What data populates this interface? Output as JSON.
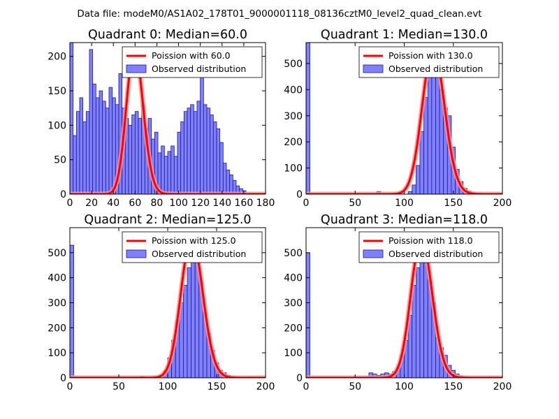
{
  "figure_title": "Data file: modeM0/AS1A02_178T01_9000001118_08136cztM0_level2_quad_clean.evt",
  "colors": {
    "bar_fill": "#8080ff",
    "bar_edge": "#1a1a8c",
    "curve": "#ff0000",
    "curve_halo": "#ff9999"
  },
  "chart_data": [
    {
      "type": "bar",
      "title": "Quadrant 0: Median=60.0",
      "xlim": [
        0,
        180
      ],
      "ylim": [
        0,
        220
      ],
      "xticks": [
        0,
        20,
        40,
        60,
        80,
        100,
        120,
        140,
        160,
        180
      ],
      "yticks": [
        0,
        50,
        100,
        150,
        200
      ],
      "legend": [
        "Poission with 60.0",
        "Observed distribution"
      ],
      "bin_width": 3,
      "bins": [
        [
          0,
          220
        ],
        [
          3,
          85
        ],
        [
          6,
          120
        ],
        [
          9,
          140
        ],
        [
          12,
          105
        ],
        [
          15,
          120
        ],
        [
          18,
          210
        ],
        [
          21,
          160
        ],
        [
          24,
          140
        ],
        [
          27,
          150
        ],
        [
          30,
          135
        ],
        [
          33,
          125
        ],
        [
          36,
          155
        ],
        [
          39,
          140
        ],
        [
          42,
          130
        ],
        [
          45,
          175
        ],
        [
          48,
          125
        ],
        [
          51,
          110
        ],
        [
          54,
          100
        ],
        [
          57,
          115
        ],
        [
          60,
          120
        ],
        [
          63,
          110
        ],
        [
          66,
          130
        ],
        [
          69,
          95
        ],
        [
          72,
          110
        ],
        [
          75,
          80
        ],
        [
          78,
          90
        ],
        [
          81,
          60
        ],
        [
          84,
          70
        ],
        [
          87,
          55
        ],
        [
          90,
          62
        ],
        [
          93,
          70
        ],
        [
          96,
          55
        ],
        [
          99,
          90
        ],
        [
          102,
          105
        ],
        [
          105,
          120
        ],
        [
          108,
          125
        ],
        [
          111,
          130
        ],
        [
          114,
          120
        ],
        [
          117,
          135
        ],
        [
          120,
          180
        ],
        [
          123,
          130
        ],
        [
          126,
          125
        ],
        [
          129,
          115
        ],
        [
          132,
          105
        ],
        [
          135,
          95
        ],
        [
          138,
          75
        ],
        [
          141,
          45
        ],
        [
          144,
          35
        ],
        [
          147,
          28
        ],
        [
          150,
          20
        ],
        [
          153,
          12
        ],
        [
          156,
          8
        ],
        [
          159,
          5
        ]
      ],
      "poisson": {
        "mean": 60,
        "peak": 210
      }
    },
    {
      "type": "bar",
      "title": "Quadrant 1: Median=130.0",
      "xlim": [
        0,
        200
      ],
      "ylim": [
        0,
        580
      ],
      "xticks": [
        0,
        50,
        100,
        150,
        200
      ],
      "yticks": [
        0,
        100,
        200,
        300,
        400,
        500
      ],
      "legend": [
        "Poission with 130.0",
        "Observed distribution"
      ],
      "bin_width": 4,
      "bins": [
        [
          0,
          580
        ],
        [
          72,
          10
        ],
        [
          104,
          10
        ],
        [
          108,
          35
        ],
        [
          112,
          110
        ],
        [
          116,
          240
        ],
        [
          120,
          370
        ],
        [
          124,
          470
        ],
        [
          128,
          520
        ],
        [
          132,
          490
        ],
        [
          136,
          400
        ],
        [
          140,
          330
        ],
        [
          144,
          300
        ],
        [
          148,
          180
        ],
        [
          152,
          95
        ],
        [
          156,
          48
        ],
        [
          160,
          22
        ],
        [
          164,
          12
        ],
        [
          168,
          6
        ],
        [
          172,
          3
        ]
      ],
      "poisson": {
        "mean": 130,
        "peak": 555
      }
    },
    {
      "type": "bar",
      "title": "Quadrant 2: Median=125.0",
      "xlim": [
        0,
        200
      ],
      "ylim": [
        0,
        600
      ],
      "xticks": [
        0,
        50,
        100,
        150,
        200
      ],
      "yticks": [
        0,
        100,
        200,
        300,
        400,
        500
      ],
      "legend": [
        "Poission with 125.0",
        "Observed distribution"
      ],
      "bin_width": 4,
      "bins": [
        [
          0,
          530
        ],
        [
          72,
          5
        ],
        [
          88,
          5
        ],
        [
          92,
          10
        ],
        [
          96,
          30
        ],
        [
          100,
          80
        ],
        [
          104,
          150
        ],
        [
          108,
          230
        ],
        [
          112,
          300
        ],
        [
          116,
          370
        ],
        [
          120,
          440
        ],
        [
          124,
          520
        ],
        [
          128,
          470
        ],
        [
          132,
          390
        ],
        [
          136,
          260
        ],
        [
          140,
          180
        ],
        [
          144,
          110
        ],
        [
          148,
          60
        ],
        [
          152,
          30
        ],
        [
          156,
          20
        ],
        [
          160,
          10
        ],
        [
          164,
          5
        ],
        [
          168,
          3
        ]
      ],
      "poisson": {
        "mean": 125,
        "peak": 560
      }
    },
    {
      "type": "bar",
      "title": "Quadrant 3: Median=118.0",
      "xlim": [
        0,
        200
      ],
      "ylim": [
        0,
        600
      ],
      "xticks": [
        0,
        50,
        100,
        150,
        200
      ],
      "yticks": [
        0,
        100,
        200,
        300,
        400,
        500
      ],
      "legend": [
        "Poission with 118.0",
        "Observed distribution"
      ],
      "bin_width": 4,
      "bins": [
        [
          0,
          500
        ],
        [
          64,
          20
        ],
        [
          68,
          15
        ],
        [
          72,
          10
        ],
        [
          76,
          15
        ],
        [
          80,
          20
        ],
        [
          84,
          15
        ],
        [
          88,
          25
        ],
        [
          92,
          40
        ],
        [
          96,
          90
        ],
        [
          100,
          150
        ],
        [
          104,
          250
        ],
        [
          108,
          370
        ],
        [
          112,
          440
        ],
        [
          116,
          550
        ],
        [
          120,
          460
        ],
        [
          124,
          390
        ],
        [
          128,
          300
        ],
        [
          132,
          160
        ],
        [
          136,
          120
        ],
        [
          140,
          90
        ],
        [
          144,
          50
        ],
        [
          148,
          30
        ],
        [
          152,
          15
        ],
        [
          156,
          8
        ],
        [
          160,
          4
        ]
      ],
      "poisson": {
        "mean": 118,
        "peak": 555
      }
    }
  ]
}
